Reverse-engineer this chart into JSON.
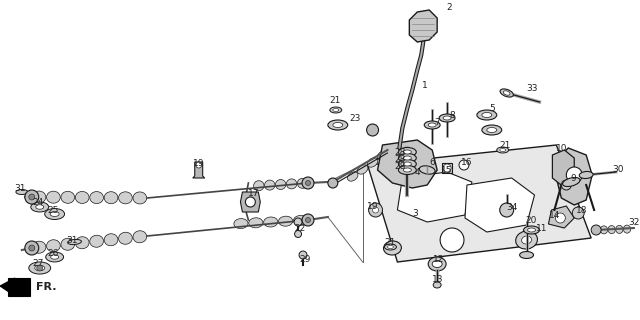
{
  "background_color": "#ffffff",
  "line_color": "#1a1a1a",
  "fig_width": 6.4,
  "fig_height": 3.2,
  "dpi": 100
}
